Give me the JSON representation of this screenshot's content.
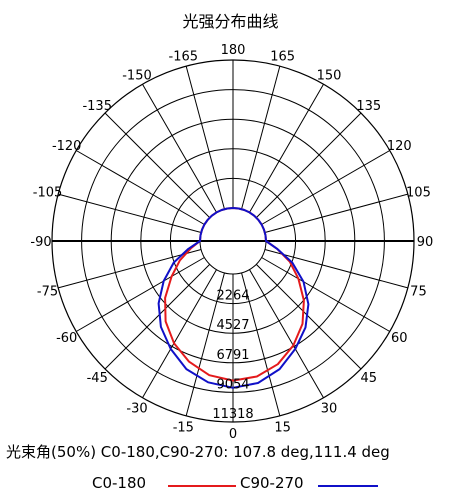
{
  "chart_data": {
    "type": "polar",
    "title": "光强分布曲线",
    "angle_labels": [
      "180",
      "165",
      "150",
      "135",
      "120",
      "105",
      "90",
      "75",
      "60",
      "45",
      "30",
      "15",
      "0",
      "-15",
      "-30",
      "-45",
      "-60",
      "-75",
      "-90",
      "-105",
      "-120",
      "-135",
      "-150",
      "-165"
    ],
    "radial_labels": [
      "2264",
      "4527",
      "6791",
      "9054",
      "11318"
    ],
    "rmax": 11318,
    "series": [
      {
        "name": "C0-180",
        "color": "#e41a1c",
        "angles": [
          0,
          10,
          20,
          30,
          40,
          50,
          60,
          70,
          80,
          90,
          100,
          110,
          120,
          130,
          140,
          150,
          160,
          170,
          180
        ],
        "right": [
          8150,
          8000,
          7500,
          6700,
          5750,
          4550,
          3250,
          2100,
          900,
          0,
          0,
          0,
          0,
          0,
          0,
          0,
          0,
          0,
          0
        ],
        "left": [
          8150,
          7900,
          7300,
          6500,
          5500,
          4250,
          2900,
          1800,
          750,
          0,
          0,
          0,
          0,
          0,
          0,
          0,
          0,
          0,
          0
        ]
      },
      {
        "name": "C90-270",
        "color": "#1010c8",
        "angles": [
          0,
          10,
          20,
          30,
          40,
          50,
          60,
          70,
          80,
          90,
          100,
          110,
          120,
          130,
          140,
          150,
          160,
          170,
          180
        ],
        "right": [
          8700,
          8500,
          7900,
          7000,
          6100,
          5000,
          3700,
          2300,
          900,
          0,
          0,
          0,
          0,
          0,
          0,
          0,
          0,
          0,
          0
        ],
        "left": [
          8700,
          8450,
          7900,
          7000,
          6050,
          4900,
          3600,
          2300,
          950,
          0,
          0,
          0,
          0,
          0,
          0,
          0,
          0,
          0,
          0
        ]
      }
    ],
    "beam_angle_text": "光束角(50%) C0-180,C90-270: 107.8 deg,111.4 deg",
    "legend": [
      "C0-180",
      "C90-270"
    ]
  }
}
